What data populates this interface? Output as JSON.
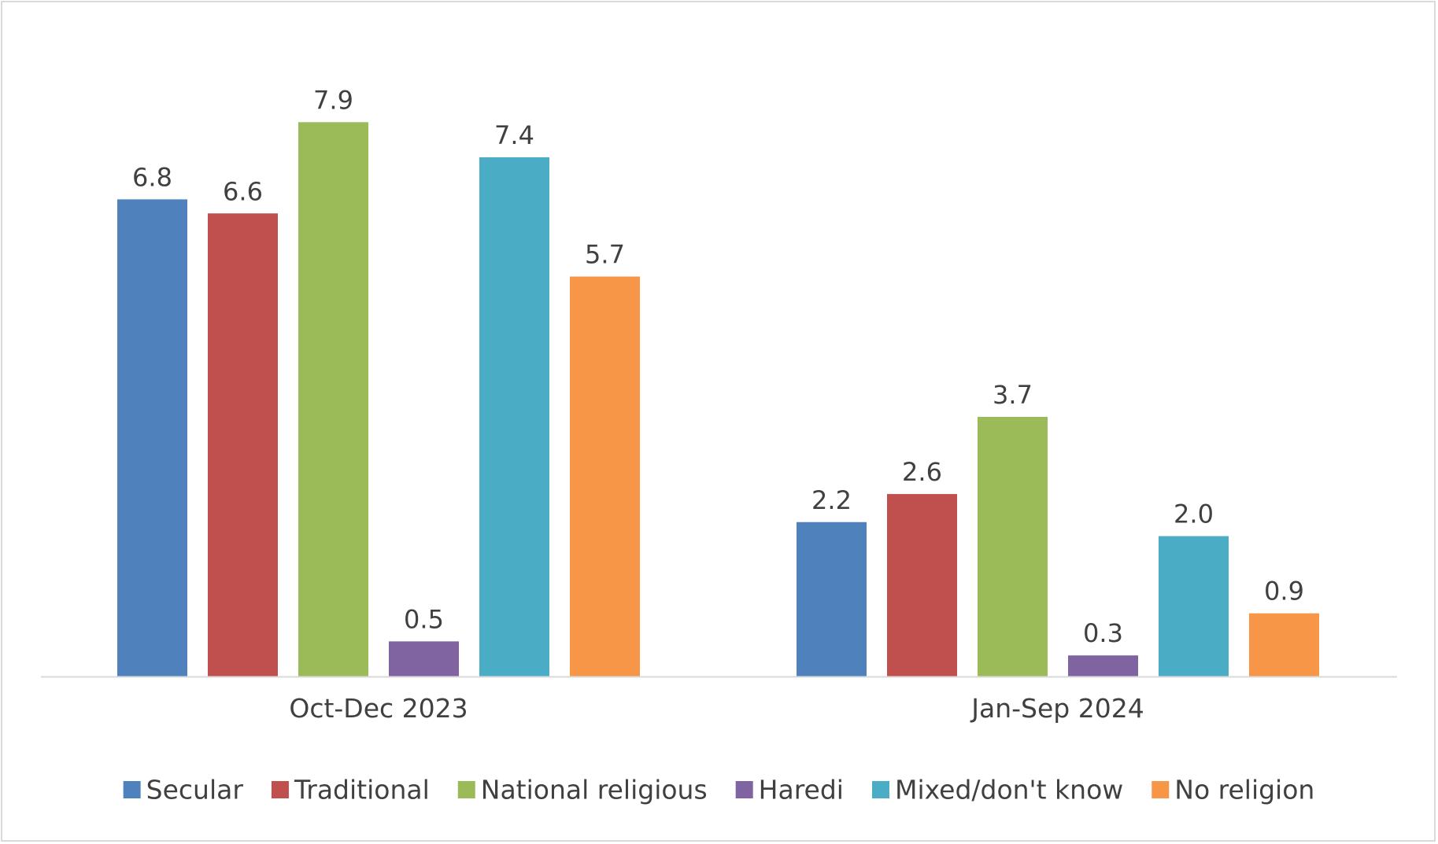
{
  "chart_data": {
    "type": "bar",
    "categories": [
      "Oct-Dec 2023",
      "Jan-Sep 2024"
    ],
    "series": [
      {
        "name": "Secular",
        "color": "#4f81bd",
        "values": [
          6.8,
          2.2
        ]
      },
      {
        "name": "Traditional",
        "color": "#c0504d",
        "values": [
          6.6,
          2.6
        ]
      },
      {
        "name": "National religious",
        "color": "#9bbb59",
        "values": [
          7.9,
          3.7
        ]
      },
      {
        "name": "Haredi",
        "color": "#8064a2",
        "values": [
          0.5,
          0.3
        ]
      },
      {
        "name": "Mixed/don't know",
        "color": "#4bacc6",
        "values": [
          7.4,
          2.0
        ]
      },
      {
        "name": "No religion",
        "color": "#f79646",
        "values": [
          5.7,
          0.9
        ]
      }
    ],
    "title": "",
    "xlabel": "",
    "ylabel": "",
    "ylim": [
      0,
      8.0
    ],
    "grid": false,
    "data_labels": true,
    "value_format": "one-decimal",
    "legend_position": "bottom"
  }
}
